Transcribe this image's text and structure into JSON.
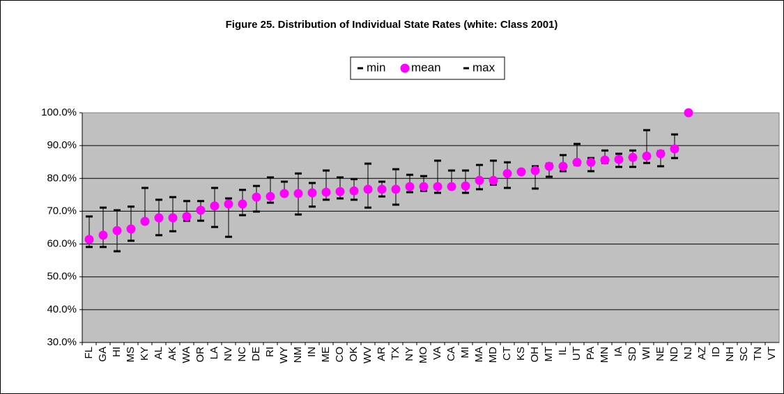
{
  "chart_data": {
    "type": "range-dot",
    "title": "Figure 25. Distribution of Individual State Rates (white: Class 2001)",
    "categories": [
      "FL",
      "GA",
      "HI",
      "MS",
      "KY",
      "AL",
      "AK",
      "WA",
      "OR",
      "LA",
      "NV",
      "NC",
      "DE",
      "RI",
      "WY",
      "NM",
      "IN",
      "ME",
      "CO",
      "OK",
      "WV",
      "AR",
      "TX",
      "NY",
      "MO",
      "VA",
      "CA",
      "MI",
      "MA",
      "MD",
      "CT",
      "KS",
      "OH",
      "MT",
      "IL",
      "UT",
      "PA",
      "MN",
      "IA",
      "SD",
      "WI",
      "NE",
      "ND",
      "NJ",
      "AZ",
      "ID",
      "NH",
      "SC",
      "TN",
      "VT"
    ],
    "series": [
      {
        "name": "min",
        "color": "#000000",
        "values": [
          59.1,
          59.1,
          57.8,
          61.0,
          67.0,
          62.7,
          63.9,
          67.1,
          67.1,
          65.2,
          62.2,
          68.8,
          69.9,
          72.6,
          75.4,
          69.0,
          71.4,
          73.5,
          73.9,
          73.5,
          71.1,
          74.5,
          72.0,
          75.8,
          76.2,
          75.6,
          77.5,
          75.6,
          76.7,
          78.1,
          77.1,
          82.0,
          76.9,
          80.5,
          82.2,
          84.1,
          82.2,
          84.7,
          83.5,
          83.5,
          84.7,
          83.7,
          86.2,
          100,
          null,
          null,
          null,
          null,
          null,
          null
        ]
      },
      {
        "name": "mean",
        "color": "#ff00ff",
        "values": [
          61.4,
          62.7,
          64.1,
          64.6,
          66.9,
          68.0,
          68.0,
          68.4,
          70.3,
          71.6,
          72.2,
          72.2,
          74.3,
          74.5,
          75.4,
          75.4,
          75.6,
          75.8,
          76.0,
          76.2,
          76.7,
          76.7,
          76.7,
          77.5,
          77.5,
          77.5,
          77.5,
          77.7,
          79.4,
          79.4,
          81.5,
          82.0,
          82.4,
          83.7,
          83.7,
          84.9,
          84.9,
          85.6,
          85.8,
          86.4,
          86.8,
          87.5,
          89.0,
          100,
          null,
          null,
          null,
          null,
          null,
          null
        ]
      },
      {
        "name": "max",
        "color": "#000000",
        "values": [
          68.4,
          71.1,
          70.3,
          71.4,
          77.1,
          73.5,
          74.3,
          73.1,
          73.1,
          77.1,
          73.9,
          76.5,
          77.7,
          80.3,
          79.0,
          81.5,
          78.6,
          82.4,
          80.3,
          79.8,
          84.5,
          79.0,
          82.8,
          81.1,
          80.7,
          85.4,
          82.4,
          82.4,
          84.1,
          85.4,
          84.9,
          82.4,
          83.7,
          84.5,
          87.1,
          90.5,
          86.2,
          88.5,
          87.5,
          88.5,
          94.7,
          88.3,
          93.4,
          100,
          null,
          null,
          null,
          null,
          null,
          null
        ]
      }
    ],
    "ylim": [
      30,
      100
    ],
    "yticks": [
      {
        "value": 30,
        "label": "30.0%"
      },
      {
        "value": 40,
        "label": "40.0%"
      },
      {
        "value": 50,
        "label": "50.0%"
      },
      {
        "value": 60,
        "label": "60.0%"
      },
      {
        "value": 70,
        "label": "70.0%"
      },
      {
        "value": 80,
        "label": "80.0%"
      },
      {
        "value": 90,
        "label": "90.0%"
      },
      {
        "value": 100,
        "label": "100.0%"
      }
    ],
    "grid": true,
    "plot_background": "#c0c0c0"
  }
}
